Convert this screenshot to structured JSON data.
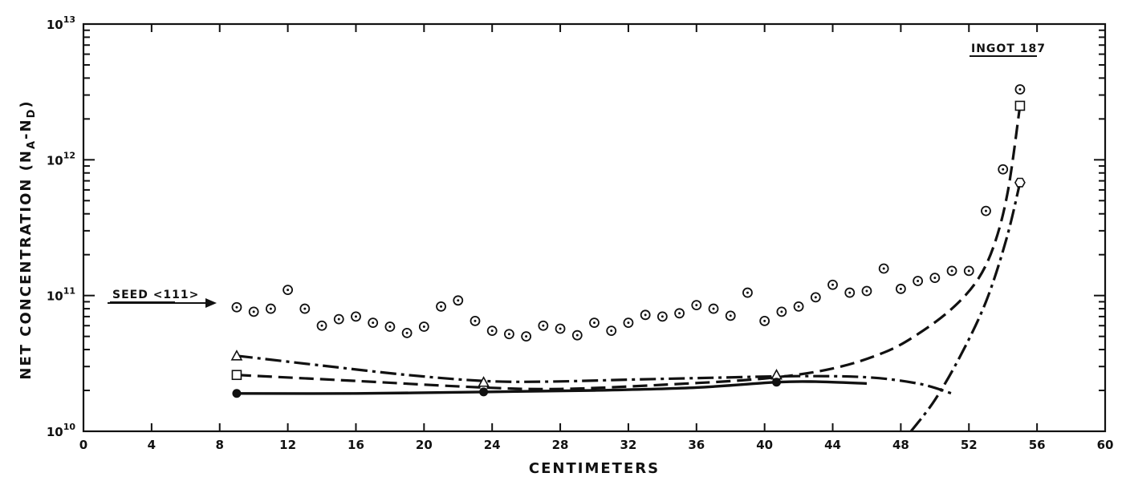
{
  "chart_data": {
    "type": "scatter",
    "xlabel": "CENTIMETERS",
    "ylabel": "NET CONCENTRATION (N",
    "ylabel_sub_a": "A",
    "ylabel_mid": "-N",
    "ylabel_sub_d": "D",
    "ylabel_end": ")",
    "xlim": [
      0,
      60
    ],
    "ylim": [
      10000000000.0,
      10000000000000.0
    ],
    "yscale": "log",
    "x_ticks": [
      "0",
      "4",
      "8",
      "12",
      "16",
      "20",
      "24",
      "28",
      "32",
      "36",
      "40",
      "44",
      "48",
      "52",
      "56",
      "60"
    ],
    "y_ticks": [
      {
        "base": "10",
        "exp": "10",
        "value": 10000000000.0
      },
      {
        "base": "10",
        "exp": "11",
        "value": 100000000000.0
      },
      {
        "base": "10",
        "exp": "12",
        "value": 1000000000000.0
      },
      {
        "base": "10",
        "exp": "13",
        "value": 10000000000000.0
      }
    ],
    "annotations": {
      "ingot": "INGOT 187",
      "seed": "SEED <111>"
    },
    "series": [
      {
        "marker": "dotted-circle",
        "points": [
          [
            9,
            82000000000.0
          ],
          [
            10,
            76000000000.0
          ],
          [
            11,
            80000000000.0
          ],
          [
            12,
            110000000000.0
          ],
          [
            13,
            80000000000.0
          ],
          [
            14,
            60000000000.0
          ],
          [
            15,
            67000000000.0
          ],
          [
            16,
            70000000000.0
          ],
          [
            17,
            63000000000.0
          ],
          [
            18,
            59000000000.0
          ],
          [
            19,
            53000000000.0
          ],
          [
            20,
            59000000000.0
          ],
          [
            21,
            83000000000.0
          ],
          [
            22,
            92000000000.0
          ],
          [
            23,
            65000000000.0
          ],
          [
            24,
            55000000000.0
          ],
          [
            25,
            52000000000.0
          ],
          [
            26,
            50000000000.0
          ],
          [
            27,
            60000000000.0
          ],
          [
            28,
            57000000000.0
          ],
          [
            29,
            51000000000.0
          ],
          [
            30,
            63000000000.0
          ],
          [
            31,
            55000000000.0
          ],
          [
            32,
            63000000000.0
          ],
          [
            33,
            72000000000.0
          ],
          [
            34,
            70000000000.0
          ],
          [
            35,
            74000000000.0
          ],
          [
            36,
            85000000000.0
          ],
          [
            37,
            80000000000.0
          ],
          [
            38,
            71000000000.0
          ],
          [
            39,
            105000000000.0
          ],
          [
            40,
            65000000000.0
          ],
          [
            41,
            76000000000.0
          ],
          [
            42,
            83000000000.0
          ],
          [
            43,
            97000000000.0
          ],
          [
            44,
            120000000000.0
          ],
          [
            45,
            105000000000.0
          ],
          [
            46,
            108000000000.0
          ],
          [
            47,
            158000000000.0
          ],
          [
            48,
            112000000000.0
          ],
          [
            49,
            128000000000.0
          ],
          [
            50,
            135000000000.0
          ],
          [
            51,
            152000000000.0
          ],
          [
            52,
            152000000000.0
          ],
          [
            53,
            420000000000.0
          ],
          [
            54,
            850000000000.0
          ],
          [
            55,
            3300000000000.0
          ]
        ]
      },
      {
        "marker": "triangle",
        "line": "dash-dot",
        "points": [
          [
            9,
            36000000000.0
          ],
          [
            23.5,
            23000000000.0
          ],
          [
            40.7,
            26000000000.0
          ]
        ],
        "curve": [
          [
            9,
            36000000000.0
          ],
          [
            14,
            30500000000.0
          ],
          [
            19,
            26000000000.0
          ],
          [
            23.5,
            23500000000.0
          ],
          [
            27,
            23200000000.0
          ],
          [
            32,
            24000000000.0
          ],
          [
            37,
            24800000000.0
          ],
          [
            42,
            25500000000.0
          ],
          [
            46,
            25000000000.0
          ],
          [
            49,
            22500000000.0
          ],
          [
            51,
            19000000000.0
          ]
        ]
      },
      {
        "marker": "square",
        "line": "dashed",
        "points": [
          [
            9,
            26000000000.0
          ],
          [
            55,
            2500000000000.0
          ]
        ],
        "curve": [
          [
            9,
            26000000000.0
          ],
          [
            16,
            23500000000.0
          ],
          [
            23.5,
            21000000000.0
          ],
          [
            28,
            20500000000.0
          ],
          [
            34,
            22000000000.0
          ],
          [
            40,
            24500000000.0
          ],
          [
            44,
            29000000000.0
          ],
          [
            47,
            38000000000.0
          ],
          [
            49,
            52000000000.0
          ],
          [
            51,
            80000000000.0
          ],
          [
            52.5,
            130000000000.0
          ],
          [
            53.5,
            240000000000.0
          ],
          [
            54.3,
            600000000000.0
          ],
          [
            55,
            2500000000000.0
          ]
        ]
      },
      {
        "marker": "filled-circle",
        "line": "solid",
        "points": [
          [
            9,
            19000000000.0
          ],
          [
            23.5,
            19500000000.0
          ],
          [
            40.7,
            23000000000.0
          ]
        ],
        "curve": [
          [
            9,
            19000000000.0
          ],
          [
            16,
            19000000000.0
          ],
          [
            23.5,
            19500000000.0
          ],
          [
            30,
            20000000000.0
          ],
          [
            36,
            21000000000.0
          ],
          [
            40.7,
            23000000000.0
          ],
          [
            43,
            23200000000.0
          ],
          [
            46,
            22500000000.0
          ]
        ]
      },
      {
        "marker": "hexagon",
        "line": "dash-dot",
        "points": [
          [
            55,
            680000000000.0
          ]
        ],
        "curve": [
          [
            48.6,
            10000000000.0
          ],
          [
            50,
            17000000000.0
          ],
          [
            51.5,
            36000000000.0
          ],
          [
            53,
            90000000000.0
          ],
          [
            54.2,
            260000000000.0
          ],
          [
            55,
            680000000000.0
          ]
        ]
      }
    ]
  }
}
